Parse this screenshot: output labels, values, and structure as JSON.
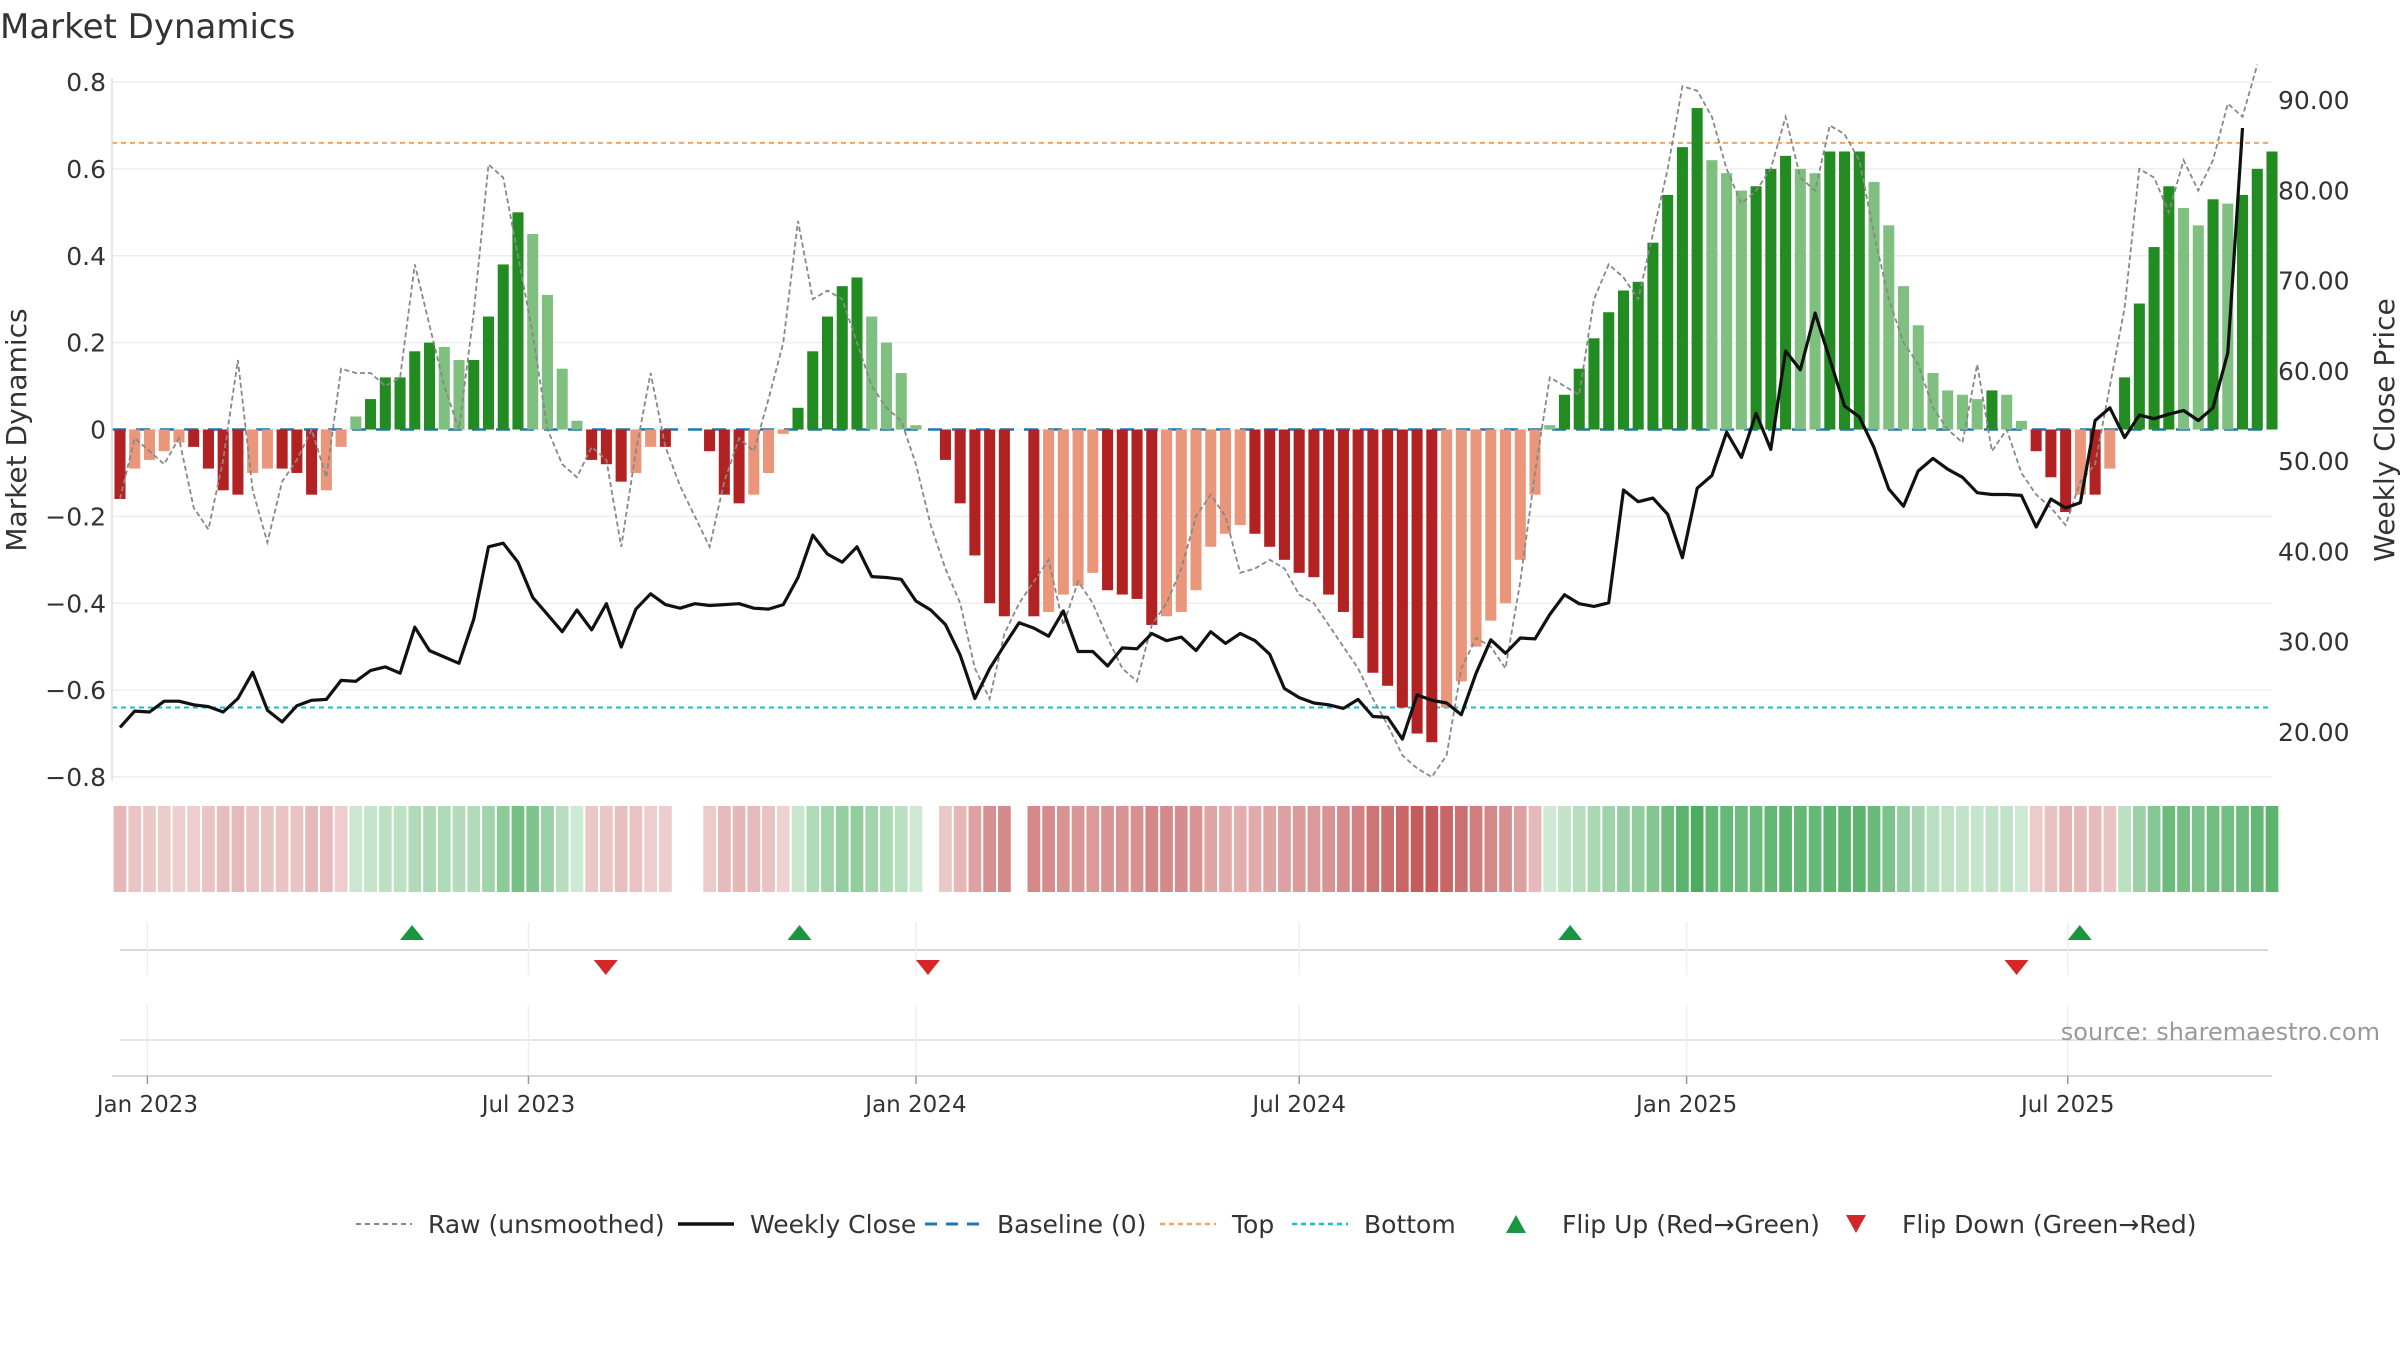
{
  "chart_data": {
    "type": "bar",
    "title": "Market Dynamics",
    "ylabel": "Market Dynamics",
    "y2label": "Weekly Close Price",
    "ylim": [
      -0.8,
      0.8
    ],
    "y2lim": [
      15,
      92
    ],
    "yticks": [
      "0.8",
      "0.6",
      "0.4",
      "0.2",
      "0",
      "−0.2",
      "−0.4",
      "−0.6",
      "−0.8"
    ],
    "y2ticks": [
      "90.00",
      "80.00",
      "70.00",
      "60.00",
      "50.00",
      "40.00",
      "30.00",
      "20.00"
    ],
    "xticks": [
      "Jan 2023",
      "Jul 2023",
      "Jan 2024",
      "Jul 2024",
      "Jan 2025",
      "Jul 2025"
    ],
    "top_level": 0.66,
    "bottom_level": -0.64,
    "source": "source: sharemaestro.com",
    "colors": {
      "green_strong": "#228b22",
      "green_light": "#7fbf7f",
      "red_strong": "#b22222",
      "red_light": "#e9967a",
      "close": "#111111",
      "raw": "#888888",
      "baseline": "#1f77b4",
      "top": "#f4a460",
      "bottom": "#17becf",
      "flip_up": "#1a9641",
      "flip_down": "#d62728"
    },
    "legend": [
      {
        "label": "Raw (unsmoothed)",
        "style": "raw"
      },
      {
        "label": "Weekly Close",
        "style": "close"
      },
      {
        "label": "Baseline (0)",
        "style": "baseline"
      },
      {
        "label": "Top",
        "style": "top"
      },
      {
        "label": "Bottom",
        "style": "bottom"
      },
      {
        "label": "Flip Up (Red→Green)",
        "style": "flip_up"
      },
      {
        "label": "Flip Down (Green→Red)",
        "style": "flip_down"
      }
    ],
    "series": [
      {
        "name": "Market Dynamics",
        "kind": "bar",
        "values": [
          -0.16,
          -0.09,
          -0.07,
          -0.05,
          -0.03,
          -0.04,
          -0.09,
          -0.14,
          -0.15,
          -0.1,
          -0.09,
          -0.09,
          -0.1,
          -0.15,
          -0.14,
          -0.04,
          0.03,
          0.07,
          0.12,
          0.12,
          0.18,
          0.2,
          0.19,
          0.16,
          0.16,
          0.26,
          0.38,
          0.5,
          0.45,
          0.31,
          0.14,
          0.02,
          -0.07,
          -0.08,
          -0.12,
          -0.1,
          -0.04,
          -0.04,
          0,
          0,
          -0.05,
          -0.15,
          -0.17,
          -0.15,
          -0.1,
          -0.01,
          0.05,
          0.18,
          0.26,
          0.33,
          0.35,
          0.26,
          0.2,
          0.13,
          0.01,
          0,
          -0.07,
          -0.17,
          -0.29,
          -0.4,
          -0.43,
          0,
          -0.43,
          -0.42,
          -0.38,
          -0.36,
          -0.33,
          -0.37,
          -0.38,
          -0.39,
          -0.45,
          -0.43,
          -0.42,
          -0.37,
          -0.27,
          -0.24,
          -0.22,
          -0.24,
          -0.27,
          -0.3,
          -0.33,
          -0.34,
          -0.38,
          -0.42,
          -0.48,
          -0.56,
          -0.59,
          -0.64,
          -0.7,
          -0.72,
          -0.64,
          -0.58,
          -0.5,
          -0.44,
          -0.4,
          -0.3,
          -0.15,
          0.01,
          0.08,
          0.14,
          0.21,
          0.27,
          0.32,
          0.34,
          0.43,
          0.54,
          0.65,
          0.74,
          0.62,
          0.59,
          0.55,
          0.56,
          0.6,
          0.63,
          0.6,
          0.59,
          0.64,
          0.64,
          0.64,
          0.57,
          0.47,
          0.33,
          0.24,
          0.13,
          0.09,
          0.08,
          0.07,
          0.09,
          0.08,
          0.02,
          -0.05,
          -0.11,
          -0.19,
          -0.15,
          -0.15,
          -0.09,
          0.12,
          0.29,
          0.42,
          0.56,
          0.51,
          0.47,
          0.53,
          0.52,
          0.54,
          0.6,
          0.64
        ]
      },
      {
        "name": "Raw (unsmoothed)",
        "kind": "line",
        "values": [
          -0.16,
          -0.02,
          -0.05,
          -0.08,
          -0.02,
          -0.18,
          -0.23,
          -0.07,
          0.16,
          -0.14,
          -0.26,
          -0.12,
          -0.07,
          0.0,
          -0.11,
          0.14,
          0.13,
          0.13,
          0.1,
          0.12,
          0.38,
          0.24,
          0.1,
          0.0,
          0.27,
          0.61,
          0.58,
          0.4,
          0.22,
          0.0,
          -0.08,
          -0.11,
          -0.04,
          -0.07,
          -0.27,
          -0.05,
          0.13,
          -0.04,
          -0.13,
          -0.2,
          -0.27,
          -0.12,
          -0.02,
          -0.05,
          0.07,
          0.2,
          0.48,
          0.3,
          0.32,
          0.3,
          0.2,
          0.1,
          0.05,
          0.02,
          -0.08,
          -0.22,
          -0.32,
          -0.4,
          -0.55,
          -0.62,
          -0.47,
          -0.4,
          -0.35,
          -0.3,
          -0.45,
          -0.35,
          -0.4,
          -0.48,
          -0.55,
          -0.58,
          -0.45,
          -0.4,
          -0.32,
          -0.2,
          -0.15,
          -0.2,
          -0.33,
          -0.32,
          -0.3,
          -0.32,
          -0.38,
          -0.4,
          -0.45,
          -0.5,
          -0.55,
          -0.62,
          -0.68,
          -0.75,
          -0.78,
          -0.8,
          -0.75,
          -0.55,
          -0.48,
          -0.5,
          -0.55,
          -0.35,
          -0.1,
          0.12,
          0.1,
          0.08,
          0.3,
          0.38,
          0.35,
          0.3,
          0.45,
          0.6,
          0.79,
          0.78,
          0.72,
          0.6,
          0.52,
          0.55,
          0.6,
          0.72,
          0.58,
          0.55,
          0.7,
          0.68,
          0.62,
          0.45,
          0.3,
          0.2,
          0.15,
          0.05,
          0.0,
          -0.03,
          0.15,
          -0.05,
          0.0,
          -0.1,
          -0.15,
          -0.18,
          -0.22,
          -0.12,
          -0.08,
          0.1,
          0.28,
          0.6,
          0.58,
          0.5,
          0.62,
          0.55,
          0.62,
          0.75,
          0.72,
          0.84
        ]
      },
      {
        "name": "Weekly Close",
        "kind": "line",
        "axis": "right",
        "values": [
          20.5,
          22.3,
          22.2,
          23.4,
          23.4,
          23.0,
          22.8,
          22.2,
          23.7,
          26.6,
          22.4,
          21.1,
          22.9,
          23.5,
          23.6,
          25.7,
          25.6,
          26.8,
          27.2,
          26.5,
          31.6,
          29.0,
          28.3,
          27.6,
          32.5,
          40.5,
          40.9,
          38.8,
          34.9,
          33.0,
          31.1,
          33.5,
          31.3,
          34.2,
          29.4,
          33.6,
          35.3,
          34.1,
          33.7,
          34.2,
          34.0,
          34.1,
          34.2,
          33.7,
          33.6,
          34.1,
          37.1,
          41.8,
          39.7,
          38.8,
          40.5,
          37.2,
          37.1,
          36.9,
          34.5,
          33.5,
          31.9,
          28.5,
          23.7,
          27.0,
          29.6,
          32.1,
          31.5,
          30.6,
          33.4,
          28.9,
          28.9,
          27.3,
          29.3,
          29.2,
          30.9,
          30.1,
          30.5,
          29.0,
          31.1,
          29.8,
          30.9,
          30.1,
          28.6,
          24.8,
          23.8,
          23.2,
          23.0,
          22.6,
          23.6,
          21.7,
          21.6,
          19.2,
          24.1,
          23.5,
          23.2,
          21.9,
          26.5,
          30.2,
          28.7,
          30.4,
          30.3,
          33.0,
          35.2,
          34.2,
          33.9,
          34.3,
          46.8,
          45.5,
          45.9,
          44.1,
          39.3,
          47.0,
          48.4,
          53.2,
          50.4,
          55.3,
          51.3,
          62.2,
          60.1,
          66.4,
          61.3,
          56.1,
          54.9,
          51.5,
          46.9,
          45.0,
          48.9,
          50.3,
          49.1,
          48.2,
          46.5,
          46.3,
          46.3,
          46.2,
          42.7,
          45.8,
          44.8,
          45.4,
          54.5,
          55.9,
          52.6,
          55.1,
          54.7,
          55.2,
          55.6,
          54.5,
          55.9,
          62.0,
          86.9
        ]
      }
    ],
    "flip_up_dates": [
      "2023-05",
      "2023-11",
      "2024-11",
      "2025-07"
    ],
    "flip_down_dates": [
      "2023-08",
      "2024-01",
      "2025-06"
    ]
  }
}
